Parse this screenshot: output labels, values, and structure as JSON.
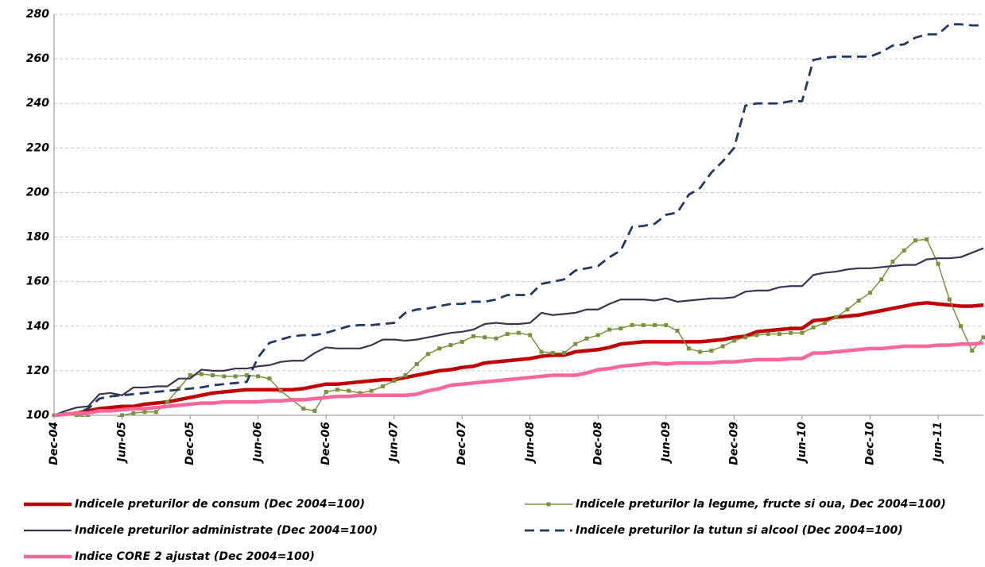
{
  "chart_data": {
    "type": "line",
    "categories": [
      "Dec-04",
      null,
      null,
      null,
      null,
      null,
      "Jun-05",
      null,
      null,
      null,
      null,
      null,
      "Dec-05",
      null,
      null,
      null,
      null,
      null,
      "Jun-06",
      null,
      null,
      null,
      null,
      null,
      "Dec-06",
      null,
      null,
      null,
      null,
      null,
      "Jun-07",
      null,
      null,
      null,
      null,
      null,
      "Dec-07",
      null,
      null,
      null,
      null,
      null,
      "Jun-08",
      null,
      null,
      null,
      null,
      null,
      "Dec-08",
      null,
      null,
      null,
      null,
      null,
      "Jun-09",
      null,
      null,
      null,
      null,
      null,
      "Dec-09",
      null,
      null,
      null,
      null,
      null,
      "Jun-10",
      null,
      null,
      null,
      null,
      null,
      "Dec-10",
      null,
      null,
      null,
      null,
      null,
      "Jun-11",
      null,
      null,
      null,
      null
    ],
    "ylim": [
      100,
      280
    ],
    "yticks": [
      100,
      120,
      140,
      160,
      180,
      200,
      220,
      240,
      260,
      280
    ],
    "grid": true,
    "series": [
      {
        "name": "Indicele preturilor de consum (Dec 2004=100)",
        "color": "#c00000",
        "values": [
          100,
          100.5,
          101,
          102,
          103,
          103.5,
          104,
          104,
          105,
          105.5,
          106,
          107,
          108,
          109,
          110,
          110.5,
          111,
          111.5,
          111.5,
          111.5,
          111.5,
          111.5,
          112,
          113,
          114,
          114,
          114.5,
          115,
          115.5,
          116,
          116,
          117,
          118,
          119,
          120,
          120.5,
          121.5,
          122,
          123.5,
          124,
          124.5,
          125,
          125.5,
          126.5,
          127,
          127,
          128.5,
          129,
          129.5,
          130.5,
          132,
          132.5,
          133,
          133,
          133,
          133,
          133,
          133,
          133.5,
          134,
          135,
          135.5,
          137.5,
          138,
          138.5,
          139,
          139,
          142.5,
          143,
          144,
          144.5,
          145,
          146,
          147,
          148,
          149,
          150,
          150.5,
          150,
          149.5,
          149,
          149,
          149.5
        ]
      },
      {
        "name": "Indicele preturilor la legume, fructe si oua, Dec 2004=100)",
        "color": "#77933c",
        "markers": true,
        "values": [
          100,
          100.5,
          100,
          99,
          98,
          98,
          100,
          101,
          101.5,
          101.5,
          106,
          112,
          118,
          118.5,
          118,
          117.5,
          117.5,
          118,
          117.5,
          116.5,
          111,
          107,
          103,
          102,
          110.5,
          111.5,
          111,
          110,
          111,
          113,
          115.5,
          118,
          123,
          127.5,
          130,
          131.5,
          133,
          135.5,
          135,
          134.5,
          136.5,
          137,
          136,
          128.5,
          128,
          128,
          132,
          134.5,
          136,
          138.5,
          139,
          140.5,
          140.5,
          140.5,
          140.5,
          138,
          130,
          128.5,
          129,
          131,
          133.5,
          135,
          136,
          136.5,
          136.5,
          137,
          137,
          139.5,
          141.5,
          144,
          147.5,
          151.5,
          155,
          161,
          169,
          174,
          178.5,
          179,
          168,
          152,
          140,
          129,
          135
        ]
      },
      {
        "name": "Indicele preturilor administrate (Dec 2004=100)",
        "color": "#3f3151",
        "values": [
          100,
          102,
          103.5,
          104,
          109.5,
          110,
          109,
          112.5,
          112.5,
          113,
          113,
          116.5,
          116.5,
          120.5,
          120,
          120,
          121,
          121,
          122,
          122.5,
          124,
          124.5,
          124.5,
          128,
          130.5,
          130,
          130,
          130,
          131.5,
          134,
          134,
          133.5,
          134,
          135,
          136,
          137,
          137.5,
          138.5,
          141,
          141.5,
          141,
          141,
          141.5,
          146,
          145,
          145.5,
          146,
          147.5,
          147.5,
          150,
          152,
          152,
          152,
          151.5,
          152.5,
          151,
          151.5,
          152,
          152.5,
          152.5,
          153,
          155.5,
          156,
          156,
          157.5,
          158,
          158,
          163,
          164,
          164.5,
          165.5,
          166,
          166,
          166.5,
          167,
          167.5,
          167.5,
          170,
          170.5,
          170.5,
          171,
          173,
          175
        ]
      },
      {
        "name": "Indicele preturilor la tutun si alcool (Dec 2004=100)",
        "color": "#1f3864",
        "dashed": true,
        "values": [
          100,
          100.5,
          101,
          103,
          107.5,
          108.5,
          109,
          109.5,
          110,
          110.5,
          111,
          111.5,
          112,
          112.5,
          113.5,
          114,
          114.5,
          115,
          126,
          132.5,
          134,
          135.5,
          136,
          136,
          137,
          138.5,
          140,
          140.5,
          140.5,
          141,
          141.5,
          146,
          147.5,
          148,
          149,
          150,
          150,
          151,
          151,
          152,
          154,
          154,
          154,
          159,
          160,
          161,
          165,
          166,
          167,
          171,
          174,
          184.5,
          185,
          186,
          190,
          191,
          199,
          202,
          209,
          214,
          220,
          239,
          240,
          240,
          240,
          241,
          241,
          259.5,
          260.5,
          261,
          261,
          261,
          261,
          263,
          266,
          266.5,
          269.5,
          271,
          271,
          275.5,
          275.5,
          275,
          275
        ]
      },
      {
        "name": "Indice CORE 2 ajustat (Dec 2004=100)",
        "color": "#ff6699",
        "values": [
          100,
          100.5,
          101,
          101,
          102,
          102,
          102.5,
          103,
          103,
          103.5,
          104,
          104.5,
          105,
          105.5,
          105.5,
          106,
          106,
          106,
          106,
          106.5,
          106.5,
          107,
          107,
          107.5,
          108,
          108.5,
          108.5,
          109,
          109,
          109,
          109,
          109,
          109.5,
          111,
          112,
          113.5,
          114,
          114.5,
          115,
          115.5,
          116,
          116.5,
          117,
          117.5,
          118,
          118,
          118,
          119,
          120.5,
          121,
          122,
          122.5,
          123,
          123.5,
          123,
          123.5,
          123.5,
          123.5,
          123.5,
          124,
          124,
          124.5,
          125,
          125,
          125,
          125.5,
          125.5,
          128,
          128,
          128.5,
          129,
          129.5,
          130,
          130,
          130.5,
          131,
          131,
          131,
          131.5,
          131.5,
          132,
          132,
          132.5
        ]
      }
    ]
  }
}
